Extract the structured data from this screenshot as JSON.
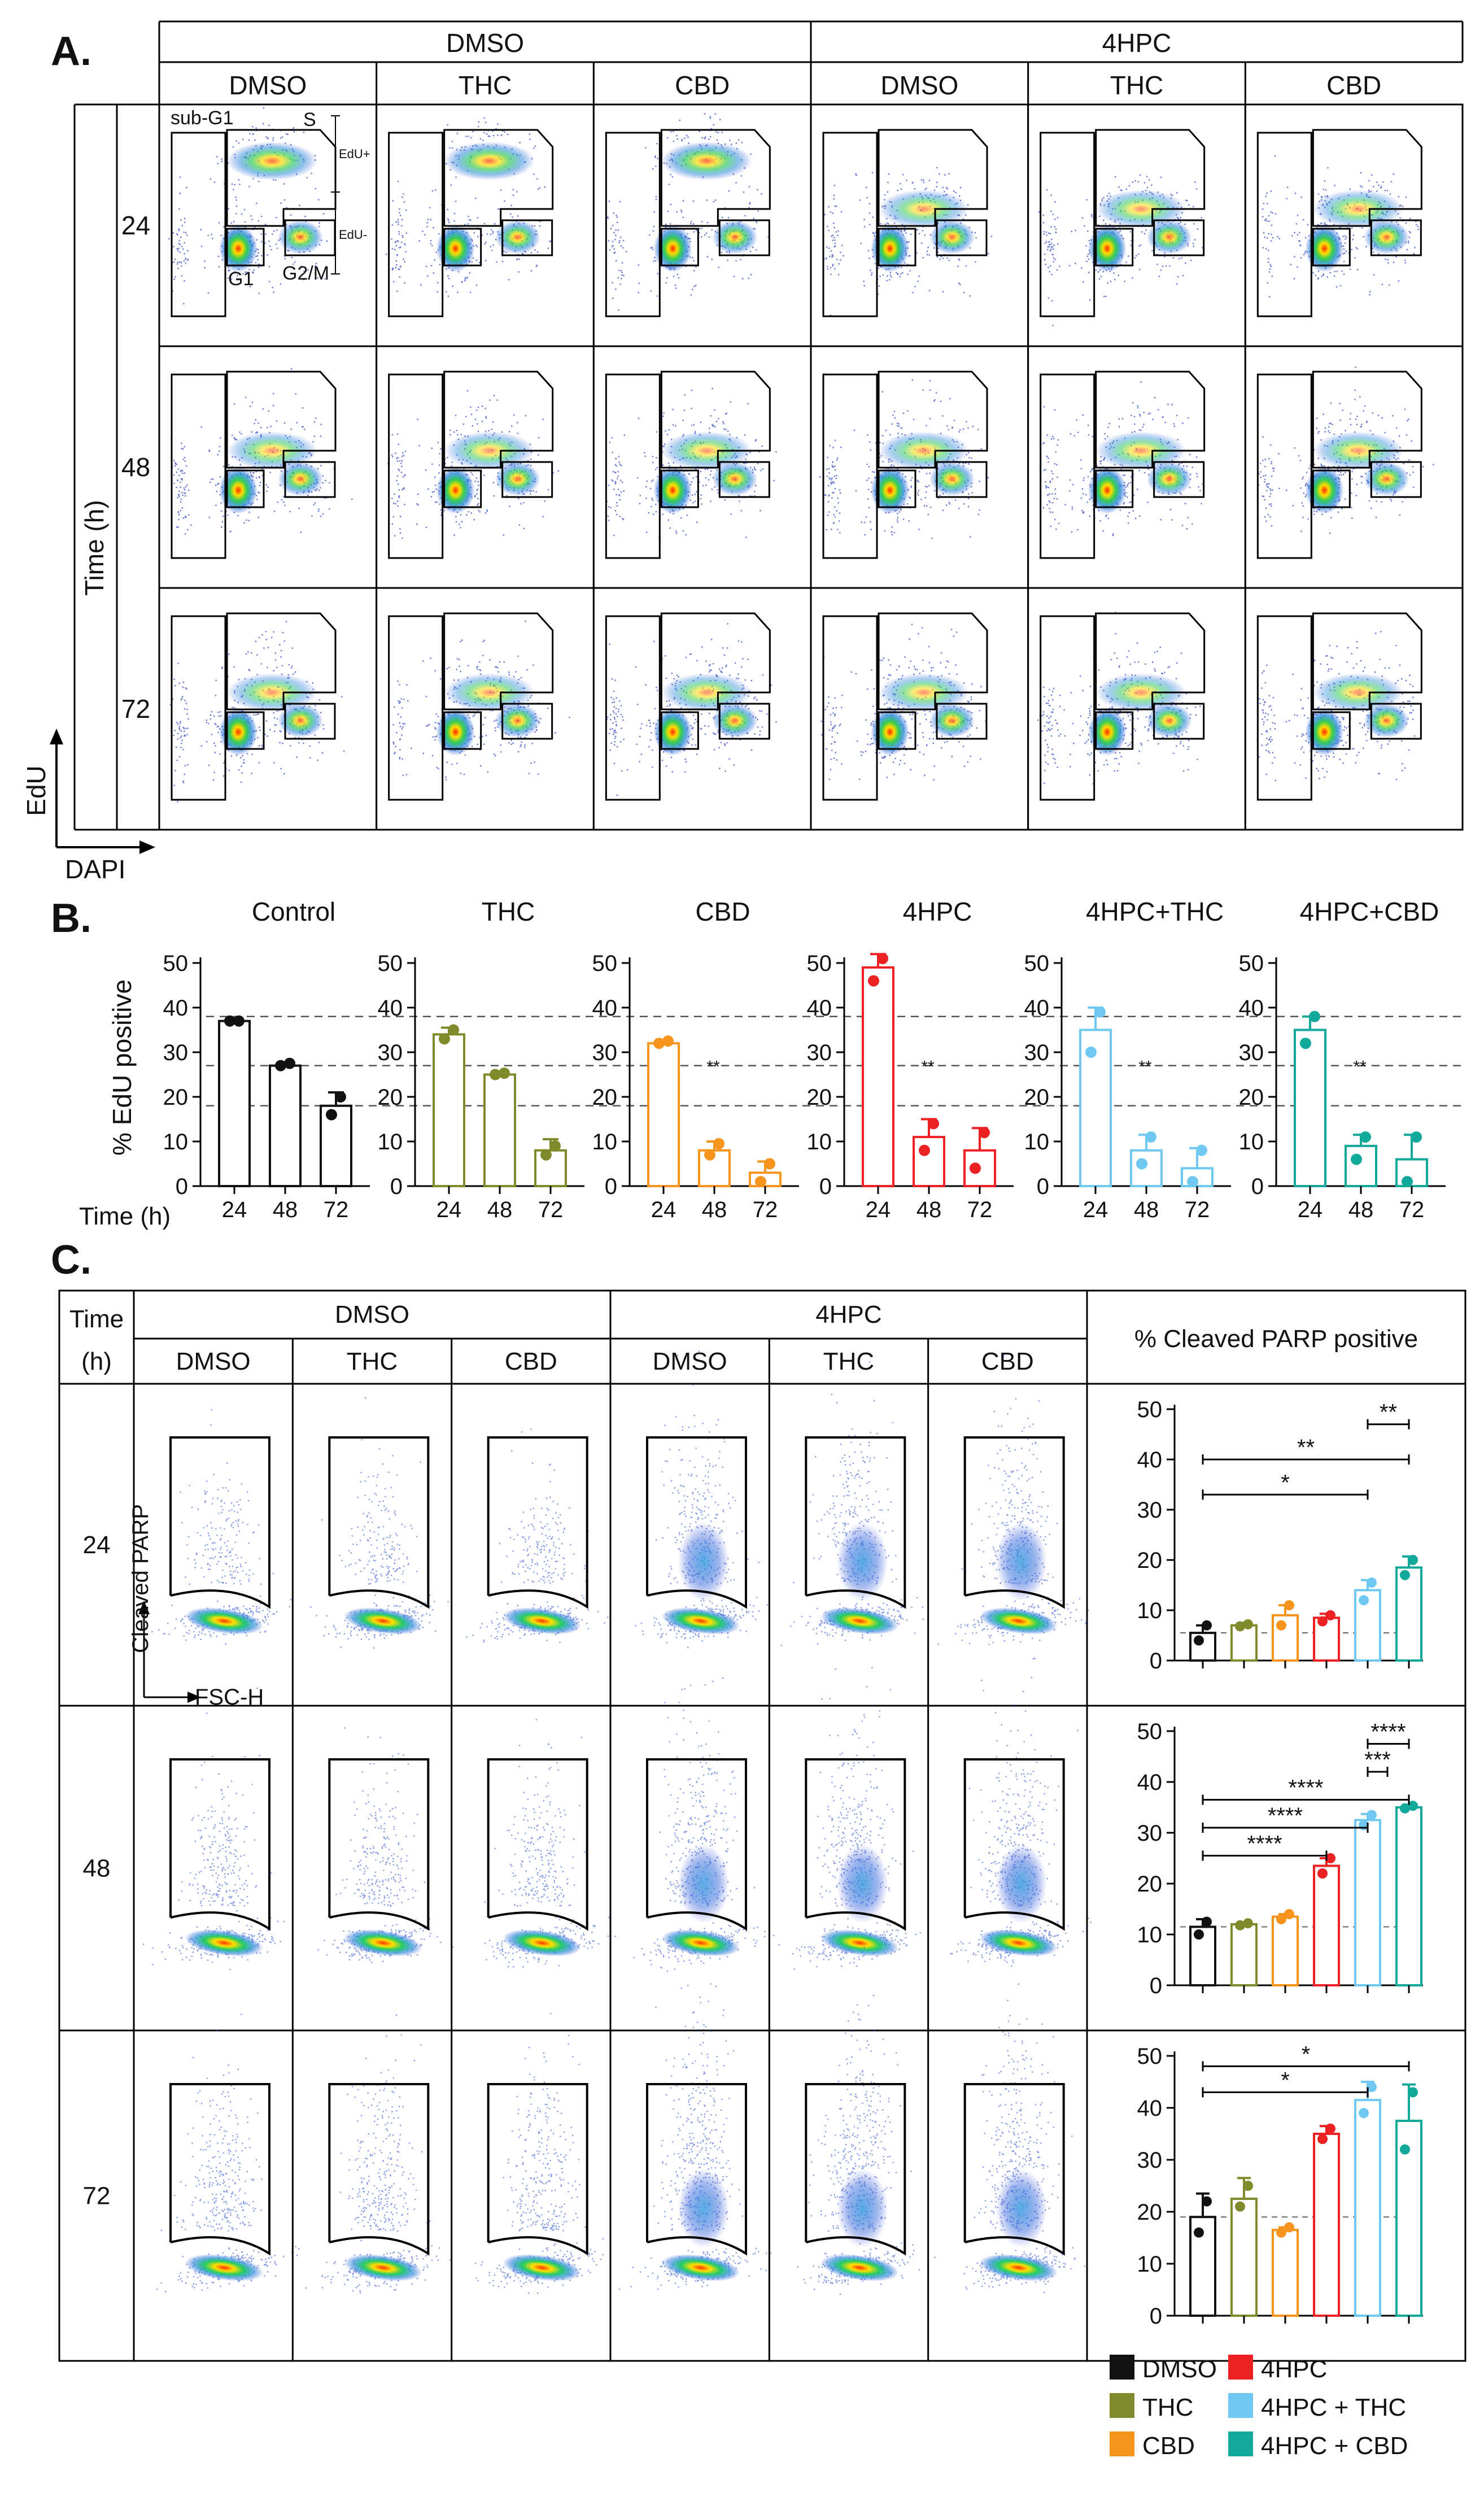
{
  "colors": {
    "Control": "#111111",
    "THC": "#808a2a",
    "CBD": "#f7941d",
    "4HPC": "#ed2024",
    "4HPC+THC": "#6ec8f0",
    "4HPC+CBD": "#12a89a"
  },
  "panelA": {
    "label": "A.",
    "groups": [
      "DMSO",
      "4HPC"
    ],
    "treatments": [
      "DMSO",
      "THC",
      "CBD",
      "DMSO",
      "THC",
      "CBD"
    ],
    "time_title": "Time (h)",
    "times": [
      "24",
      "48",
      "72"
    ],
    "axis_y": "EdU",
    "axis_x": "DAPI",
    "gates": {
      "sub_g1": "sub-G1",
      "s": "S",
      "g1": "G1",
      "g2m": "G2/M",
      "edu_pos": "EdU+",
      "edu_neg": "EdU-"
    }
  },
  "panelB": {
    "label": "B.",
    "ylabel": "% EdU positive",
    "xlabel": "Time (h)",
    "sig": "**",
    "chart_data": {
      "type": "bar",
      "ylim": [
        0,
        50
      ],
      "yticks": [
        "0",
        "10",
        "20",
        "30",
        "40",
        "50"
      ],
      "categories": [
        "24",
        "48",
        "72"
      ],
      "reference_lines": [
        38,
        27,
        18
      ],
      "series": [
        {
          "name": "Control",
          "values": [
            37,
            27,
            18
          ],
          "errors": [
            0.5,
            0.5,
            3
          ],
          "points": [
            [
              37,
              37
            ],
            [
              27,
              27.5
            ],
            [
              16,
              20
            ]
          ]
        },
        {
          "name": "THC",
          "values": [
            34,
            25,
            8
          ],
          "errors": [
            1.5,
            0.5,
            2.5
          ],
          "points": [
            [
              33,
              35
            ],
            [
              25,
              25.3
            ],
            [
              7,
              9
            ]
          ]
        },
        {
          "name": "CBD",
          "values": [
            32,
            8,
            3
          ],
          "errors": [
            0.5,
            2,
            2.5
          ],
          "points": [
            [
              32,
              32.5
            ],
            [
              7,
              9.5
            ],
            [
              1,
              5
            ]
          ]
        },
        {
          "name": "4HPC",
          "values": [
            49,
            11,
            8
          ],
          "errors": [
            3,
            4,
            5
          ],
          "points": [
            [
              46,
              51
            ],
            [
              8,
              14
            ],
            [
              4,
              12
            ]
          ]
        },
        {
          "name": "4HPC+THC",
          "values": [
            35,
            8,
            4
          ],
          "errors": [
            5,
            3.5,
            4.5
          ],
          "points": [
            [
              30,
              39
            ],
            [
              5,
              11
            ],
            [
              1,
              8
            ]
          ]
        },
        {
          "name": "4HPC+CBD",
          "values": [
            35,
            9,
            6
          ],
          "errors": [
            3,
            2.5,
            5.5
          ],
          "points": [
            [
              32,
              38
            ],
            [
              6,
              11
            ],
            [
              1,
              11
            ]
          ]
        }
      ]
    }
  },
  "panelC": {
    "label": "C.",
    "time_title_1": "Time",
    "time_title_2": "(h)",
    "groups": [
      "DMSO",
      "4HPC"
    ],
    "treatments": [
      "DMSO",
      "THC",
      "CBD",
      "DMSO",
      "THC",
      "CBD"
    ],
    "bar_title": "% Cleaved PARP positive",
    "times": [
      "24",
      "48",
      "72"
    ],
    "axis_y": "Cleaved PARP",
    "axis_x": "FSC-H",
    "chart_data": [
      {
        "type": "bar",
        "time": "24",
        "ylim": [
          0,
          50
        ],
        "yticks": [
          "0",
          "10",
          "20",
          "30",
          "40",
          "50"
        ],
        "categories": [
          "DMSO",
          "THC",
          "CBD",
          "4HPC",
          "4HPC+THC",
          "4HPC+CBD"
        ],
        "values": [
          5.5,
          7,
          9,
          8.5,
          14,
          18.5
        ],
        "errors": [
          1.5,
          0.5,
          2,
          0.8,
          2,
          2.2
        ],
        "points": [
          [
            4,
            7
          ],
          [
            6.8,
            7.2
          ],
          [
            7,
            11
          ],
          [
            7.8,
            9
          ],
          [
            12,
            15.5
          ],
          [
            17,
            20
          ]
        ],
        "reference_line": 5.5,
        "comparisons": [
          {
            "from": 4,
            "to": 5,
            "label": "**"
          },
          {
            "from": 0,
            "to": 5,
            "label": "**"
          },
          {
            "from": 0,
            "to": 4,
            "label": "*"
          }
        ]
      },
      {
        "type": "bar",
        "time": "48",
        "ylim": [
          0,
          50
        ],
        "yticks": [
          "0",
          "10",
          "20",
          "30",
          "40",
          "50"
        ],
        "categories": [
          "DMSO",
          "THC",
          "CBD",
          "4HPC",
          "4HPC+THC",
          "4HPC+CBD"
        ],
        "values": [
          11.5,
          12,
          13.5,
          23.5,
          32.5,
          35
        ],
        "errors": [
          1.5,
          0.3,
          0.5,
          1.5,
          1.2,
          0.5
        ],
        "points": [
          [
            10,
            12.5
          ],
          [
            11.8,
            12.2
          ],
          [
            13,
            14
          ],
          [
            22,
            25
          ],
          [
            31.5,
            33.5
          ],
          [
            34.8,
            35.3
          ]
        ],
        "reference_line": 11.5,
        "comparisons": [
          {
            "from": 4,
            "to": 5,
            "label": "****"
          },
          {
            "from": 4,
            "to": 5,
            "label": "***"
          },
          {
            "from": 0,
            "to": 5,
            "label": "****"
          },
          {
            "from": 0,
            "to": 4,
            "label": "****"
          },
          {
            "from": 0,
            "to": 3,
            "label": "****"
          }
        ]
      },
      {
        "type": "bar",
        "time": "72",
        "ylim": [
          0,
          50
        ],
        "yticks": [
          "0",
          "10",
          "20",
          "30",
          "40",
          "50"
        ],
        "categories": [
          "DMSO",
          "THC",
          "CBD",
          "4HPC",
          "4HPC+THC",
          "4HPC+CBD"
        ],
        "values": [
          19,
          22.5,
          16.5,
          35,
          41.5,
          37.5
        ],
        "errors": [
          4.5,
          4,
          0.5,
          1.5,
          3.5,
          7
        ],
        "points": [
          [
            16,
            22
          ],
          [
            21,
            25
          ],
          [
            16,
            17
          ],
          [
            34,
            36
          ],
          [
            39,
            44
          ],
          [
            32,
            43
          ]
        ],
        "reference_line": 19,
        "comparisons": [
          {
            "from": 0,
            "to": 5,
            "label": "*"
          },
          {
            "from": 0,
            "to": 4,
            "label": "*"
          }
        ]
      }
    ]
  },
  "legend": [
    {
      "key": "DMSO",
      "label": "DMSO",
      "color": "#111111"
    },
    {
      "key": "4HPC",
      "label": "4HPC",
      "color": "#ed2024"
    },
    {
      "key": "THC",
      "label": "THC",
      "color": "#808a2a"
    },
    {
      "key": "4HPC+THC",
      "label": "4HPC + THC",
      "color": "#6ec8f0"
    },
    {
      "key": "CBD",
      "label": "CBD",
      "color": "#f7941d"
    },
    {
      "key": "4HPC+CBD",
      "label": "4HPC + CBD",
      "color": "#12a89a"
    }
  ]
}
